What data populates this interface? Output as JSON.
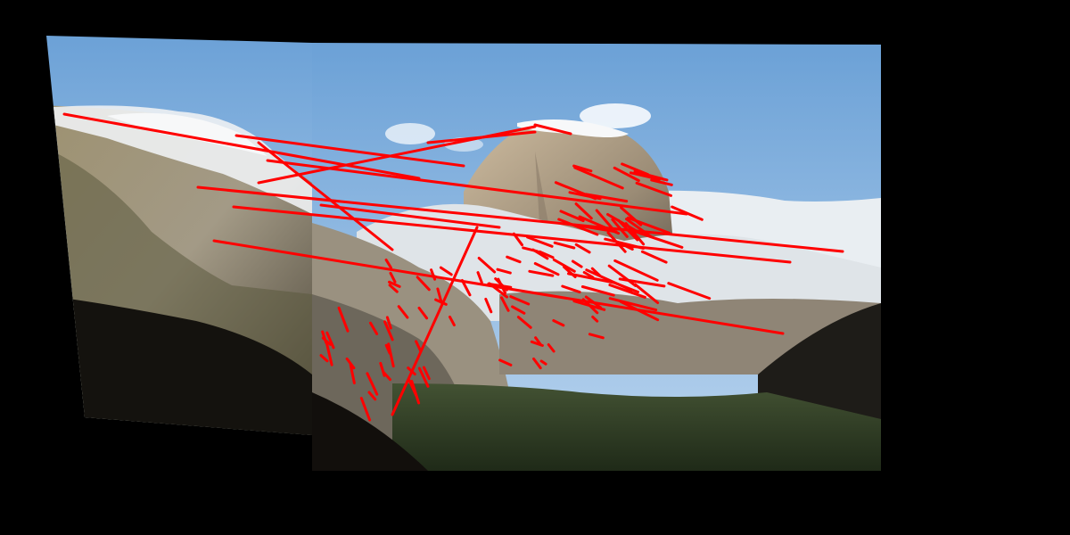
{
  "scene": {
    "subject": "panorama-stitch-with-feature-matches",
    "background_color": "#000000",
    "colors": {
      "sky_top": "#6fa4d8",
      "sky_bottom": "#b9d3ef",
      "snow": "#f2f4f6",
      "granite_light": "#c9b79e",
      "granite_dark": "#6f6558",
      "shadow": "#1d1a16",
      "forest": "#2f3b24",
      "match_line": "#ff0000"
    },
    "match_line_count": 120
  }
}
